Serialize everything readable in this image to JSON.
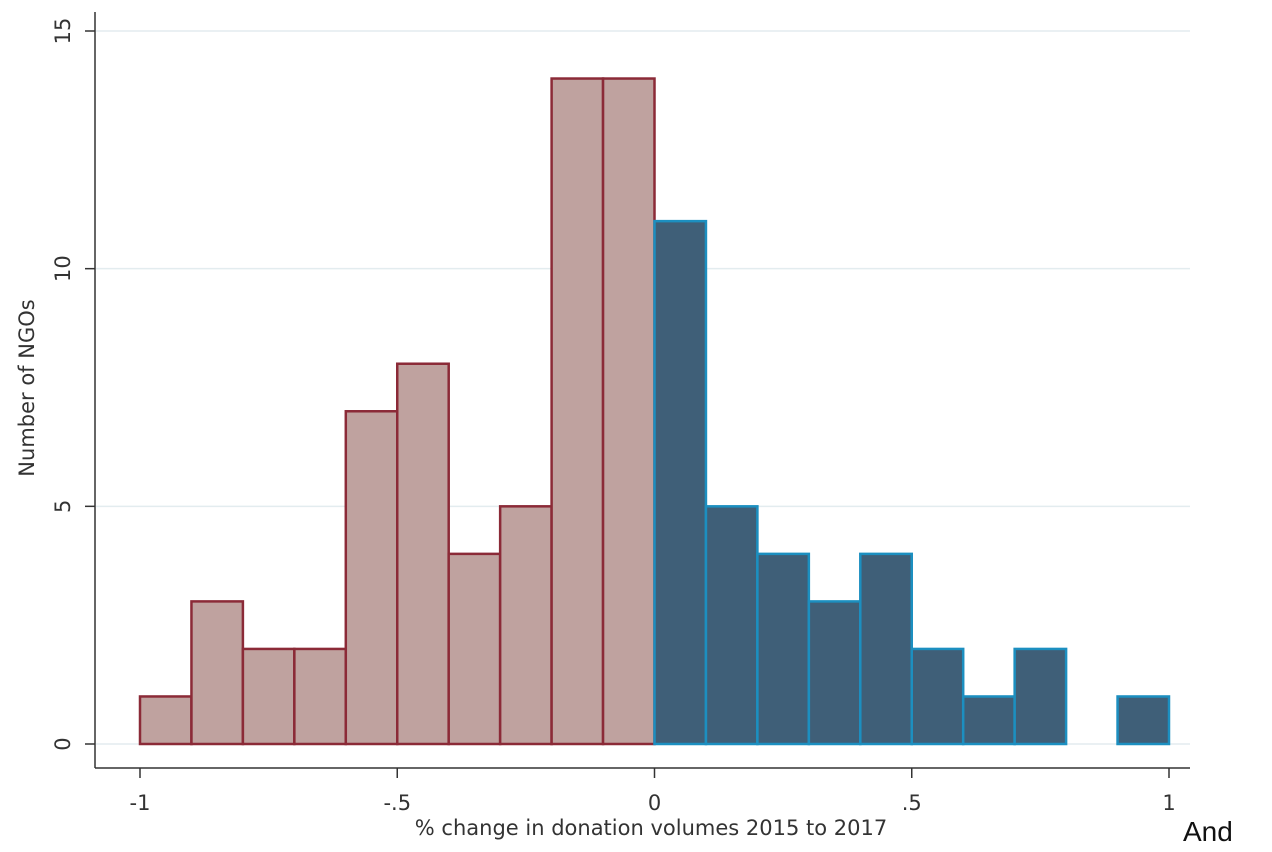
{
  "chart_data": {
    "type": "bar",
    "title": "",
    "xlabel": "% change in donation volumes 2015 to 2017",
    "ylabel": "Number of NGOs",
    "xlim": [
      -1,
      1
    ],
    "ylim": [
      0,
      15
    ],
    "x_ticks": [
      {
        "value": -1,
        "label": "-1"
      },
      {
        "value": -0.5,
        "label": "-.5"
      },
      {
        "value": 0,
        "label": "0"
      },
      {
        "value": 0.5,
        "label": ".5"
      },
      {
        "value": 1,
        "label": "1"
      }
    ],
    "y_ticks": [
      {
        "value": 0,
        "label": "0"
      },
      {
        "value": 5,
        "label": "5"
      },
      {
        "value": 10,
        "label": "10"
      },
      {
        "value": 15,
        "label": "15"
      }
    ],
    "grid": "horizontal",
    "bin_width": 0.1,
    "series": [
      {
        "fill": "#bfa29f",
        "stroke": "#8b2a37",
        "bins": [
          {
            "start": -1.0,
            "count": 1
          },
          {
            "start": -0.9,
            "count": 3
          },
          {
            "start": -0.8,
            "count": 2
          },
          {
            "start": -0.7,
            "count": 2
          },
          {
            "start": -0.6,
            "count": 7
          },
          {
            "start": -0.5,
            "count": 8
          },
          {
            "start": -0.4,
            "count": 4
          },
          {
            "start": -0.3,
            "count": 5
          },
          {
            "start": -0.2,
            "count": 14
          },
          {
            "start": -0.1,
            "count": 14
          }
        ]
      },
      {
        "fill": "#3f5f78",
        "stroke": "#1c8fc0",
        "bins": [
          {
            "start": 0.0,
            "count": 11
          },
          {
            "start": 0.1,
            "count": 5
          },
          {
            "start": 0.2,
            "count": 4
          },
          {
            "start": 0.3,
            "count": 3
          },
          {
            "start": 0.4,
            "count": 4
          },
          {
            "start": 0.5,
            "count": 2
          },
          {
            "start": 0.6,
            "count": 1
          },
          {
            "start": 0.7,
            "count": 2
          },
          {
            "start": 0.9,
            "count": 1
          }
        ]
      }
    ]
  },
  "trailing_text": "And"
}
